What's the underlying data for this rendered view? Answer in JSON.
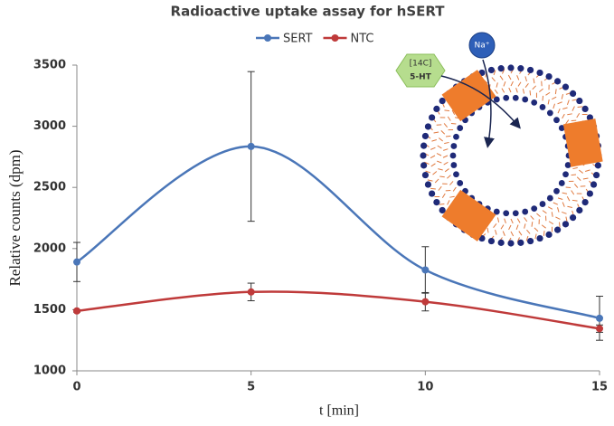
{
  "chart_data": {
    "type": "line",
    "title": "Radioactive uptake assay for hSERT",
    "x_label": "t [min]",
    "y_label": "Relative counts (dpm)",
    "x": [
      0,
      5,
      10,
      15
    ],
    "series": [
      {
        "name": "SERT",
        "color": "#4a76b8",
        "values": [
          1890,
          2835,
          1825,
          1430
        ],
        "errors": [
          160,
          612,
          190,
          180
        ]
      },
      {
        "name": "NTC",
        "color": "#bf3a3a",
        "values": [
          1490,
          1645,
          1565,
          1345
        ],
        "errors": [
          10,
          72,
          75,
          30
        ]
      }
    ],
    "xlim": [
      0,
      15
    ],
    "xticks": [
      0,
      5,
      10,
      15
    ],
    "ylim": [
      1000,
      3500
    ],
    "yticks": [
      1000,
      1500,
      2000,
      2500,
      3000,
      3500
    ],
    "grid": false,
    "legend": "top",
    "smooth": true,
    "annotations": [
      "[14C]",
      "5-HT",
      "Na⁺"
    ]
  }
}
